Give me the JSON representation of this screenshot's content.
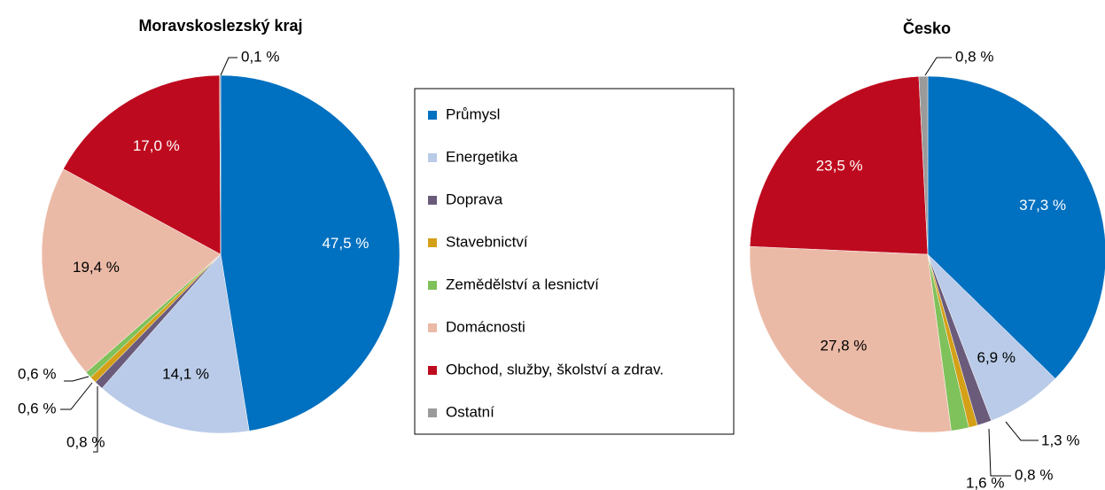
{
  "chart_data": [
    {
      "type": "pie",
      "title": "Moravskoslezský kraj",
      "values": [
        47.5,
        14.1,
        0.8,
        0.6,
        0.6,
        19.4,
        17.0,
        0.1
      ],
      "value_labels": [
        "47,5 %",
        "14,1 %",
        "0,8 %",
        "0,6 %",
        "0,6 %",
        "19,4 %",
        "17,0 %",
        "0,1 %"
      ]
    },
    {
      "type": "pie",
      "title": "Česko",
      "values": [
        37.3,
        6.9,
        1.3,
        0.8,
        1.6,
        27.8,
        23.5,
        0.8
      ],
      "value_labels": [
        "37,3 %",
        "6,9 %",
        "1,3 %",
        "0,8 %",
        "1,6 %",
        "27,8 %",
        "23,5 %",
        "0,8 %"
      ]
    }
  ],
  "legend": {
    "categories": [
      "Průmysl",
      "Energetika",
      "Doprava",
      "Stavebnictví",
      "Zemědělství a lesnictví",
      "Domácnosti",
      "Obchod, služby, školství a zdrav.",
      "Ostatní"
    ],
    "colors": [
      "#0070c0",
      "#b9cbe8",
      "#6b5b7b",
      "#d4a017",
      "#7fc15a",
      "#ebbaa7",
      "#be0a1e",
      "#9a9a9a"
    ]
  }
}
